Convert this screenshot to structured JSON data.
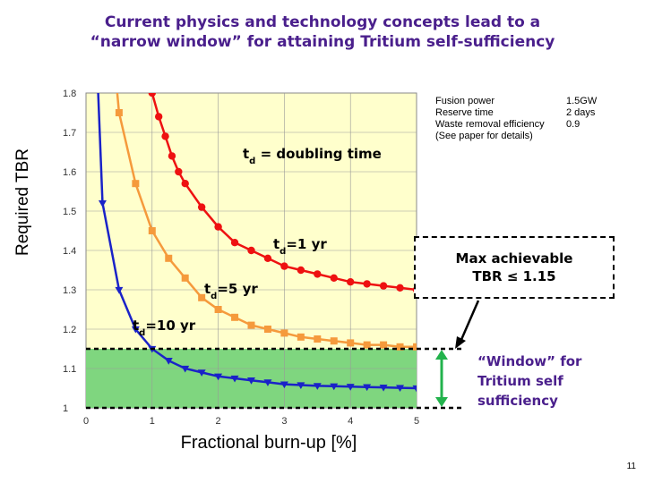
{
  "title_lines": [
    "Current physics and technology concepts lead to a",
    "“narrow window” for attaining Tritium self-sufficiency"
  ],
  "params": [
    {
      "name": "Fusion power",
      "value": "1.5GW"
    },
    {
      "name": "Reserve time",
      "value": "2 days"
    },
    {
      "name": "Waste removal efficiency",
      "value": "0.9"
    },
    {
      "name": "(See paper for details)",
      "value": ""
    }
  ],
  "box_lines": [
    "Max achievable",
    "TBR ≤ 1.15"
  ],
  "window_lines": [
    "“Window” for",
    "Tritium self",
    "sufficiency"
  ],
  "page_number": "11",
  "colors": {
    "plot_bg": "#ffffcc",
    "window_fill": "#7fd67f",
    "red": "#ee1111",
    "orange": "#f59a3c",
    "blue": "#1a22c8",
    "title": "#4a1f8c",
    "arrow": "#22b24c"
  },
  "chart_data": {
    "type": "line",
    "title": "",
    "xlabel": "Fractional burn-up [%]",
    "ylabel": "Required TBR",
    "xlim": [
      0,
      5
    ],
    "ylim": [
      1,
      1.8
    ],
    "x_ticks": [
      "0",
      "1",
      "2",
      "3",
      "4",
      "5"
    ],
    "y_ticks": [
      "1",
      "1.1",
      "1.2",
      "1.3",
      "1.4",
      "1.5",
      "1.6",
      "1.7",
      "1.8"
    ],
    "annotations": [
      "td = doubling time",
      "td=1 yr",
      "td=5 yr",
      "td=10 yr"
    ],
    "shaded_band": {
      "y_from": 1.0,
      "y_to": 1.15
    },
    "max_line": 1.15,
    "series": [
      {
        "name": "td=1 yr",
        "color": "red",
        "marker": "circle",
        "x": [
          1.0,
          1.1,
          1.2,
          1.3,
          1.4,
          1.5,
          1.75,
          2.0,
          2.25,
          2.5,
          2.75,
          3.0,
          3.25,
          3.5,
          3.75,
          4.0,
          4.25,
          4.5,
          4.75,
          5.0
        ],
        "y": [
          1.8,
          1.74,
          1.69,
          1.64,
          1.6,
          1.57,
          1.51,
          1.46,
          1.42,
          1.4,
          1.38,
          1.36,
          1.35,
          1.34,
          1.33,
          1.32,
          1.315,
          1.31,
          1.305,
          1.3
        ]
      },
      {
        "name": "td=5 yr",
        "color": "orange",
        "marker": "square",
        "x": [
          0.5,
          0.75,
          1.0,
          1.25,
          1.5,
          1.75,
          2.0,
          2.25,
          2.5,
          2.75,
          3.0,
          3.25,
          3.5,
          3.75,
          4.0,
          4.25,
          4.5,
          4.75,
          5.0
        ],
        "y": [
          1.75,
          1.57,
          1.45,
          1.38,
          1.33,
          1.28,
          1.25,
          1.23,
          1.21,
          1.2,
          1.19,
          1.18,
          1.175,
          1.17,
          1.165,
          1.16,
          1.16,
          1.155,
          1.155
        ]
      },
      {
        "name": "td=10 yr",
        "color": "blue",
        "marker": "triangle-down",
        "x": [
          0.25,
          0.5,
          0.75,
          1.0,
          1.25,
          1.5,
          1.75,
          2.0,
          2.25,
          2.5,
          2.75,
          3.0,
          3.25,
          3.5,
          3.75,
          4.0,
          4.25,
          4.5,
          4.75,
          5.0
        ],
        "y": [
          1.52,
          1.3,
          1.2,
          1.15,
          1.12,
          1.1,
          1.09,
          1.08,
          1.075,
          1.07,
          1.065,
          1.06,
          1.058,
          1.056,
          1.055,
          1.054,
          1.053,
          1.052,
          1.051,
          1.05
        ]
      }
    ]
  }
}
